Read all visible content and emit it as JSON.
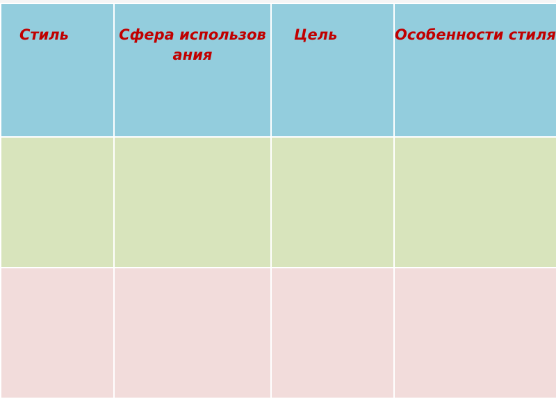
{
  "table": {
    "headers": [
      "Стиль",
      "Сфера использования",
      "Цель",
      "Особенности стиля"
    ],
    "rows": [
      [
        "",
        "",
        "",
        ""
      ],
      [
        "",
        "",
        "",
        ""
      ]
    ]
  },
  "colors": {
    "header_bg": "#93cddd",
    "row1_bg": "#d8e4bc",
    "row2_bg": "#f2dcdb",
    "header_text": "#c00000"
  }
}
